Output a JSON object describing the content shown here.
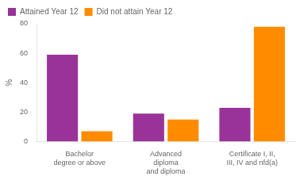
{
  "chart_data": {
    "type": "bar",
    "categories": [
      "Bachelor\ndegree or above",
      "Advanced\ndiploma\nand diploma",
      "Certificate I, II,\nIII, IV and nfd(a)"
    ],
    "series": [
      {
        "name": "Attained Year 12",
        "color": "#993399",
        "values": [
          59,
          19,
          23
        ]
      },
      {
        "name": "Did not attain Year 12",
        "color": "#FF8C00",
        "values": [
          7,
          15,
          78
        ]
      }
    ],
    "ylabel": "%",
    "ylim": [
      0,
      80
    ],
    "yticks": [
      0,
      20,
      40,
      60,
      80
    ],
    "grid": false,
    "legend": "upper left"
  }
}
